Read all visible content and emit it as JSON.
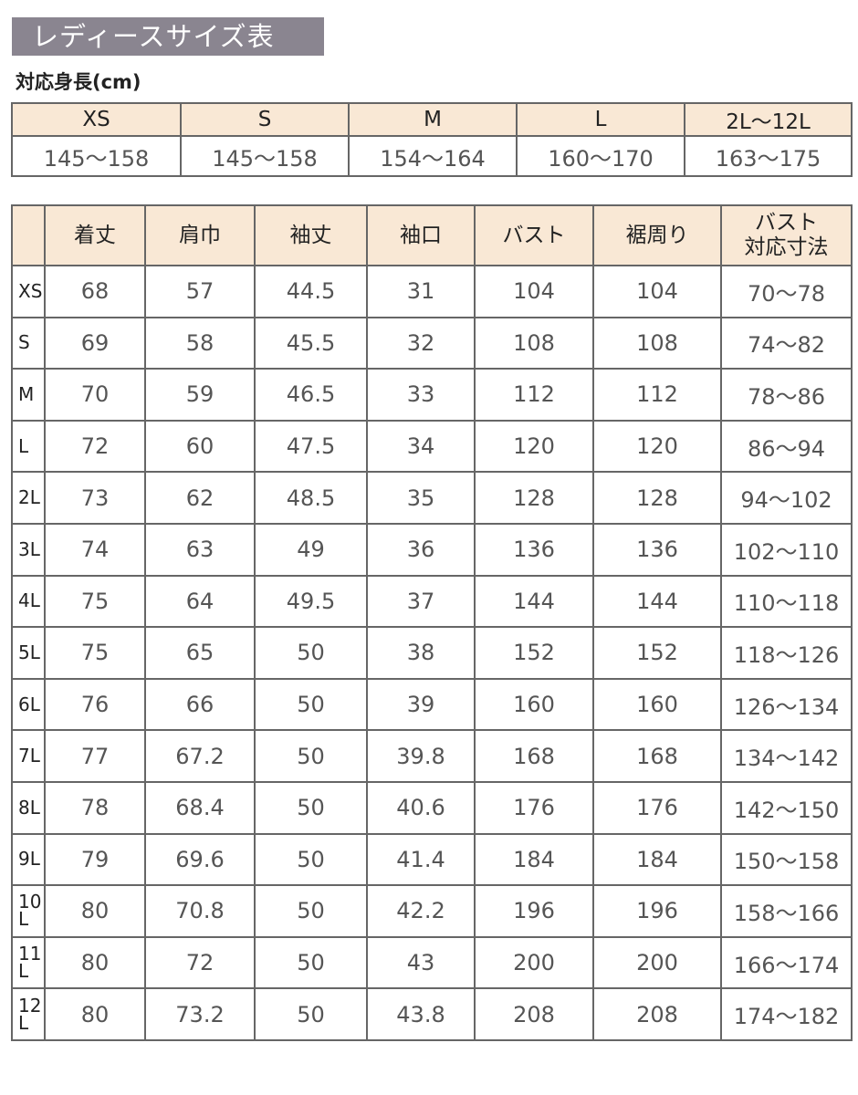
{
  "title": "レディースサイズ表",
  "height_label": "対応身長(cm)",
  "height_table": {
    "sizes": [
      "XS",
      "S",
      "M",
      "L",
      "2L〜12L"
    ],
    "heights": [
      "145〜158",
      "145〜158",
      "154〜164",
      "160〜170",
      "163〜175"
    ]
  },
  "size_table": {
    "headers": [
      "",
      "着丈",
      "肩巾",
      "袖丈",
      "袖口",
      "バスト",
      "裾周り",
      "バスト\n対応寸法"
    ],
    "rows": [
      [
        "XS",
        "68",
        "57",
        "44.5",
        "31",
        "104",
        "104",
        "70〜78"
      ],
      [
        "S",
        "69",
        "58",
        "45.5",
        "32",
        "108",
        "108",
        "74〜82"
      ],
      [
        "M",
        "70",
        "59",
        "46.5",
        "33",
        "112",
        "112",
        "78〜86"
      ],
      [
        "L",
        "72",
        "60",
        "47.5",
        "34",
        "120",
        "120",
        "86〜94"
      ],
      [
        "2L",
        "73",
        "62",
        "48.5",
        "35",
        "128",
        "128",
        "94〜102"
      ],
      [
        "3L",
        "74",
        "63",
        "49",
        "36",
        "136",
        "136",
        "102〜110"
      ],
      [
        "4L",
        "75",
        "64",
        "49.5",
        "37",
        "144",
        "144",
        "110〜118"
      ],
      [
        "5L",
        "75",
        "65",
        "50",
        "38",
        "152",
        "152",
        "118〜126"
      ],
      [
        "6L",
        "76",
        "66",
        "50",
        "39",
        "160",
        "160",
        "126〜134"
      ],
      [
        "7L",
        "77",
        "67.2",
        "50",
        "39.8",
        "168",
        "168",
        "134〜142"
      ],
      [
        "8L",
        "78",
        "68.4",
        "50",
        "40.6",
        "176",
        "176",
        "142〜150"
      ],
      [
        "9L",
        "79",
        "69.6",
        "50",
        "41.4",
        "184",
        "184",
        "150〜158"
      ],
      [
        "10L",
        "80",
        "70.8",
        "50",
        "42.2",
        "196",
        "196",
        "158〜166"
      ],
      [
        "11L",
        "80",
        "72",
        "50",
        "43",
        "200",
        "200",
        "166〜174"
      ],
      [
        "12L",
        "80",
        "73.2",
        "50",
        "43.8",
        "208",
        "208",
        "174〜182"
      ]
    ]
  },
  "colors": {
    "title_bg": "#8a8590",
    "header_bg": "#f9e8d5",
    "border": "#666666"
  }
}
